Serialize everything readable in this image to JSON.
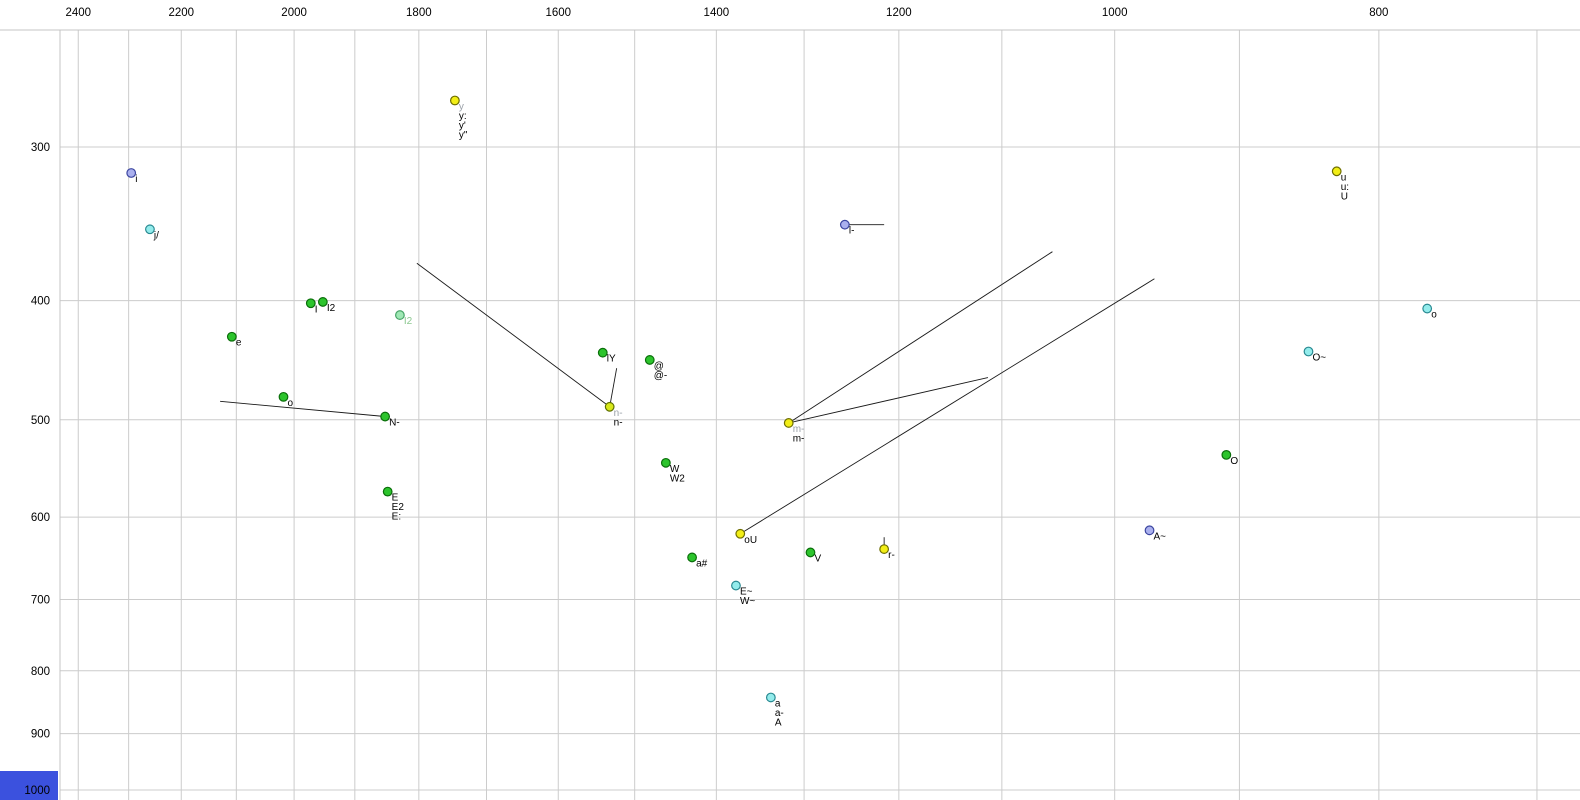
{
  "colors": {
    "background": "#ffffff",
    "grid": "#cccccc",
    "frame": "#c4c4c4",
    "segment": "#1a1a1a",
    "label_default": "#000000",
    "label_gray": "#9aa0a8",
    "label_pale_green": "#8cc890",
    "corner_box": "#3b51de",
    "dot_palette": {
      "yellow": {
        "fill": "#f2ee16",
        "stroke": "#6e6e00"
      },
      "yellow_green": {
        "fill": "#d8e81a",
        "stroke": "#5e7000"
      },
      "green": {
        "fill": "#2cc42c",
        "stroke": "#0a6e0a"
      },
      "cyan": {
        "fill": "#93ecec",
        "stroke": "#2a8a92"
      },
      "purple": {
        "fill": "#aab0ee",
        "stroke": "#3c46a0"
      },
      "pale_green": {
        "fill": "#9fe8b4",
        "stroke": "#48a468"
      }
    }
  },
  "chart_data": {
    "type": "scatter",
    "x_axis": {
      "scale": "log",
      "reversed": true,
      "range": [
        2564,
        675
      ],
      "tick_labels": [
        2400,
        2200,
        2000,
        1800,
        1600,
        1400,
        1200,
        1000,
        800
      ],
      "gridlines": [
        2400,
        2300,
        2200,
        2100,
        2000,
        1900,
        1800,
        1700,
        1600,
        1500,
        1400,
        1300,
        1200,
        1100,
        1000,
        900,
        800,
        700
      ]
    },
    "y_axis": {
      "scale": "log",
      "direction": "down",
      "range": [
        241,
        1019
      ],
      "tick_labels": [
        300,
        400,
        500,
        600,
        700,
        800,
        900,
        1000
      ],
      "gridlines": [
        300,
        400,
        500,
        600,
        700,
        800,
        900,
        1000
      ]
    },
    "points": [
      {
        "f2": 1746,
        "f1": 275,
        "color": "yellow",
        "labels": [
          {
            "t": "y",
            "c": "label_gray"
          },
          {
            "t": "y:"
          },
          {
            "t": "y'"
          },
          {
            "t": "y\""
          }
        ]
      },
      {
        "f2": 2295,
        "f1": 315,
        "color": "purple",
        "labels": [
          {
            "t": "i"
          }
        ]
      },
      {
        "f2": 2259,
        "f1": 350,
        "color": "cyan",
        "labels": [
          {
            "t": "j/"
          }
        ]
      },
      {
        "f2": 1972,
        "f1": 402,
        "color": "green",
        "labels": [
          {
            "t": "I"
          }
        ]
      },
      {
        "f2": 1952,
        "f1": 401,
        "color": "green",
        "labels": [
          {
            "t": "I2"
          }
        ]
      },
      {
        "f2": 1829,
        "f1": 411,
        "color": "pale_green",
        "labels": [
          {
            "t": "I2",
            "c": "label_pale_green"
          }
        ]
      },
      {
        "f2": 2108,
        "f1": 428,
        "color": "green",
        "labels": [
          {
            "t": "e"
          }
        ]
      },
      {
        "f2": 2018,
        "f1": 479,
        "color": "green",
        "labels": [
          {
            "t": "o"
          }
        ]
      },
      {
        "f2": 1852,
        "f1": 497,
        "color": "green",
        "labels": [
          {
            "t": "N-"
          }
        ]
      },
      {
        "f2": 1541,
        "f1": 441,
        "color": "green",
        "labels": [
          {
            "t": "lY"
          }
        ]
      },
      {
        "f2": 1481,
        "f1": 447,
        "color": "green",
        "labels": [
          {
            "t": "@"
          },
          {
            "t": "@-"
          }
        ]
      },
      {
        "f2": 1532,
        "f1": 488,
        "color": "yellow_green",
        "labels": [
          {
            "t": "n-",
            "c": "label_gray"
          },
          {
            "t": "n-"
          }
        ]
      },
      {
        "f2": 1461,
        "f1": 542,
        "color": "green",
        "labels": [
          {
            "t": "W"
          },
          {
            "t": "W2"
          }
        ]
      },
      {
        "f2": 1848,
        "f1": 572,
        "color": "green",
        "labels": [
          {
            "t": "E"
          },
          {
            "t": "E2"
          },
          {
            "t": "E:"
          }
        ]
      },
      {
        "f2": 1317,
        "f1": 503,
        "color": "yellow",
        "labels": [
          {
            "t": "m-",
            "c": "label_gray"
          },
          {
            "t": "m-"
          }
        ]
      },
      {
        "f2": 1256,
        "f1": 347,
        "color": "purple",
        "labels": [
          {
            "t": "l-"
          }
        ]
      },
      {
        "f2": 1372,
        "f1": 619,
        "color": "yellow",
        "labels": [
          {
            "t": "oU"
          }
        ]
      },
      {
        "f2": 1429,
        "f1": 647,
        "color": "green",
        "labels": [
          {
            "t": "a#"
          }
        ]
      },
      {
        "f2": 1293,
        "f1": 641,
        "color": "green",
        "labels": [
          {
            "t": "V"
          }
        ]
      },
      {
        "f2": 1215,
        "f1": 637,
        "color": "yellow",
        "labels": [
          {
            "t": "r-"
          }
        ]
      },
      {
        "f2": 1377,
        "f1": 682,
        "color": "cyan",
        "labels": [
          {
            "t": "E~"
          },
          {
            "t": "W~"
          }
        ]
      },
      {
        "f2": 1337,
        "f1": 841,
        "color": "cyan",
        "labels": [
          {
            "t": "a"
          },
          {
            "t": "a-"
          },
          {
            "t": "A"
          }
        ]
      },
      {
        "f2": 971,
        "f1": 615,
        "color": "purple",
        "labels": [
          {
            "t": "A~"
          }
        ]
      },
      {
        "f2": 910,
        "f1": 534,
        "color": "green",
        "labels": [
          {
            "t": "O"
          }
        ]
      },
      {
        "f2": 849,
        "f1": 440,
        "color": "cyan",
        "labels": [
          {
            "t": "O~"
          }
        ]
      },
      {
        "f2": 768,
        "f1": 406,
        "color": "cyan",
        "labels": [
          {
            "t": "o"
          }
        ]
      },
      {
        "f2": 829,
        "f1": 314,
        "color": "yellow",
        "labels": [
          {
            "t": "u"
          },
          {
            "t": "u:"
          },
          {
            "t": "U"
          }
        ]
      }
    ],
    "segments": [
      {
        "from": [
          1803,
          373
        ],
        "to": [
          1532,
          488
        ]
      },
      {
        "from": [
          2129,
          483
        ],
        "to": [
          1852,
          497
        ]
      },
      {
        "from": [
          1317,
          503
        ],
        "to": [
          1054,
          365
        ]
      },
      {
        "from": [
          1317,
          503
        ],
        "to": [
          1113,
          462
        ]
      },
      {
        "from": [
          1372,
          619
        ],
        "to": [
          967,
          384
        ]
      },
      {
        "from": [
          1256,
          347
        ],
        "to": [
          1215,
          347
        ]
      },
      {
        "from": [
          1532,
          488
        ],
        "to": [
          1523,
          454
        ]
      },
      {
        "from": [
          1215,
          637
        ],
        "to": [
          1215,
          623
        ]
      }
    ]
  }
}
